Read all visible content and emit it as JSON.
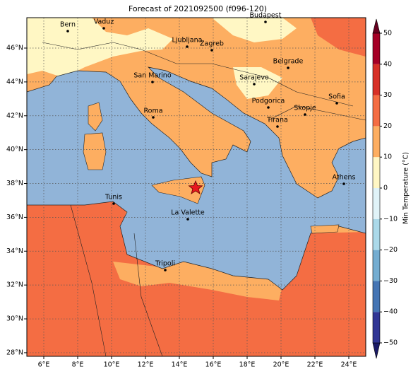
{
  "title": "Forecast of 2021092500 (f096-120)",
  "map": {
    "lon_ticks": [
      {
        "value": 6,
        "label": "6°E"
      },
      {
        "value": 8,
        "label": "8°E"
      },
      {
        "value": 10,
        "label": "10°E"
      },
      {
        "value": 12,
        "label": "12°E"
      },
      {
        "value": 14,
        "label": "14°E"
      },
      {
        "value": 16,
        "label": "16°E"
      },
      {
        "value": 18,
        "label": "18°E"
      },
      {
        "value": 20,
        "label": "20°E"
      },
      {
        "value": 22,
        "label": "22°E"
      },
      {
        "value": 24,
        "label": "24°E"
      }
    ],
    "lat_ticks": [
      {
        "value": 28,
        "label": "28°N"
      },
      {
        "value": 30,
        "label": "30°N"
      },
      {
        "value": 32,
        "label": "32°N"
      },
      {
        "value": 34,
        "label": "34°N"
      },
      {
        "value": 36,
        "label": "36°N"
      },
      {
        "value": 38,
        "label": "38°N"
      },
      {
        "value": 40,
        "label": "40°N"
      },
      {
        "value": 42,
        "label": "42°N"
      },
      {
        "value": 44,
        "label": "44°N"
      },
      {
        "value": 46,
        "label": "46°N"
      }
    ],
    "cities": [
      "Bern",
      "Vaduz",
      "Budapest",
      "Ljubljana",
      "Zagreb",
      "Belgrade",
      "San Marino",
      "Sarajevo",
      "Sofia",
      "Podgorica",
      "Skopje",
      "Roma",
      "Tirana",
      "Athens",
      "Tunis",
      "La Valette",
      "Tripoli"
    ]
  },
  "colorbar": {
    "label": "Min Temperature (°C)",
    "ticks": [
      {
        "value": -50,
        "label": "−50"
      },
      {
        "value": -40,
        "label": "−40"
      },
      {
        "value": -30,
        "label": "−30"
      },
      {
        "value": -20,
        "label": "−20"
      },
      {
        "value": -10,
        "label": "−10"
      },
      0,
      10,
      20,
      30,
      40,
      50
    ]
  }
}
